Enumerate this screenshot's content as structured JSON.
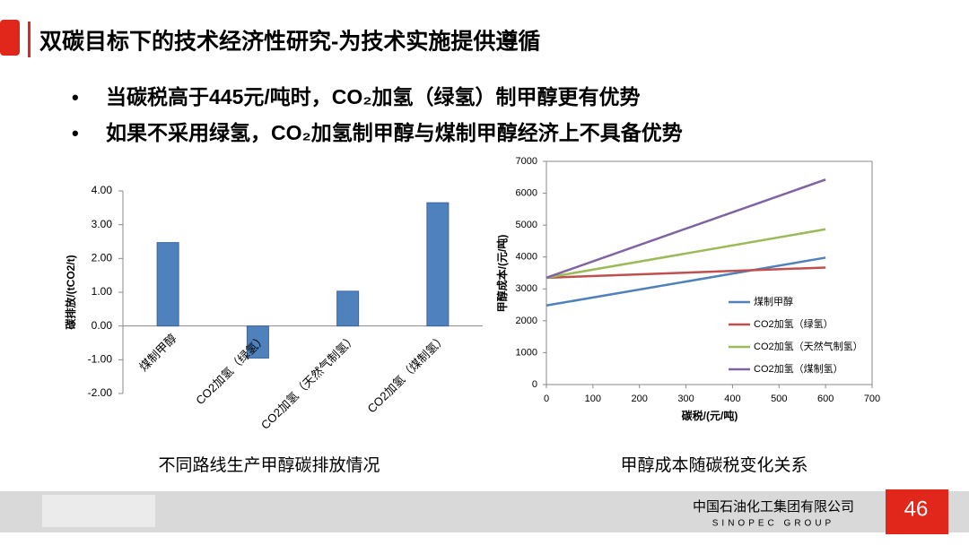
{
  "header": {
    "title": "双碳目标下的技术经济性研究-为技术实施提供遵循"
  },
  "bullets": [
    "当碳税高于445元/吨时，CO₂加氢（绿氢）制甲醇更有优势",
    "如果不采用绿氢，CO₂加氢制甲醇与煤制甲醇经济上不具备优势"
  ],
  "chart_data": [
    {
      "type": "bar",
      "title": "不同路线生产甲醇碳排放情况",
      "y_label": "碳排放/(tCO2/t)",
      "categories": [
        "煤制甲醇",
        "CO2加氢（绿氢）",
        "CO2加氢（天然气制氢）",
        "CO2加氢（煤制氢）"
      ],
      "values": [
        2.47,
        -0.95,
        1.03,
        3.65
      ],
      "color": "#4f81bd",
      "ylim": [
        -2,
        4
      ],
      "yticks": [
        {
          "value": -2,
          "label": "-2.00"
        },
        {
          "value": -1,
          "label": "-1.00"
        },
        {
          "value": 0,
          "label": "0.00"
        },
        {
          "value": 1,
          "label": "1.00"
        },
        {
          "value": 2,
          "label": "2.00"
        },
        {
          "value": 3,
          "label": "3.00"
        },
        {
          "value": 4,
          "label": "4.00"
        }
      ]
    },
    {
      "type": "line",
      "title": "甲醇成本随碳税变化关系",
      "x_label": "碳税/(元/吨)",
      "y_label": "甲醇成本/(元/吨)",
      "x": [
        0,
        600
      ],
      "series": [
        {
          "name": "煤制甲醇",
          "color": "#4f81bd",
          "values": [
            2480,
            3980
          ]
        },
        {
          "name": "CO2加氢（绿氢）",
          "color": "#c0504d",
          "values": [
            3350,
            3670
          ]
        },
        {
          "name": "CO2加氢（天然气制氢）",
          "color": "#9bbb59",
          "values": [
            3350,
            4870
          ]
        },
        {
          "name": "CO2加氢（煤制氢）",
          "color": "#8064a2",
          "values": [
            3350,
            6430
          ]
        }
      ],
      "xlim": [
        0,
        700
      ],
      "xticks": [
        0,
        100,
        200,
        300,
        400,
        500,
        600,
        700
      ],
      "ylim": [
        0,
        7000
      ],
      "yticks": [
        0,
        1000,
        2000,
        3000,
        4000,
        5000,
        6000,
        7000
      ]
    }
  ],
  "footer": {
    "company": "中国石油化工集团有限公司",
    "company_en": "SINOPEC GROUP",
    "page": 46
  }
}
